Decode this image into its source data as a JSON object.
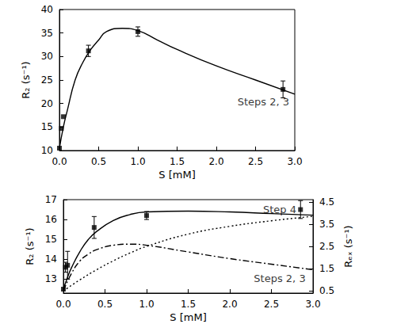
{
  "chart_data": [
    {
      "type": "line",
      "xlabel": "S [mM]",
      "ylabel": "R₂ (s⁻¹)",
      "xlim": [
        0,
        3.0
      ],
      "xticks": [
        {
          "value": 0,
          "label": "0.0"
        },
        {
          "value": 0.5,
          "label": "0.5"
        },
        {
          "value": 1,
          "label": "1.0"
        },
        {
          "value": 1.5,
          "label": "1.5"
        },
        {
          "value": 2,
          "label": "2.0"
        },
        {
          "value": 2.5,
          "label": "2.5"
        },
        {
          "value": 3,
          "label": "3.0"
        }
      ],
      "ylim": [
        10,
        40
      ],
      "yticks": [
        10,
        15,
        20,
        25,
        30,
        35,
        40
      ],
      "grid": false,
      "series": [
        {
          "type": "line",
          "color": "#000000",
          "line_style": "solid",
          "x": [
            0,
            0.05,
            0.1,
            0.2,
            0.3,
            0.4,
            0.5,
            0.6,
            0.8,
            1.0,
            1.25,
            1.5,
            2.0,
            2.5,
            3.0
          ],
          "values": [
            10.5,
            15.0,
            18.5,
            25.0,
            28.8,
            31.5,
            33.5,
            35.3,
            36.0,
            35.5,
            33.5,
            31.5,
            28.0,
            25.0,
            22.0
          ]
        },
        {
          "type": "scatter",
          "color": "#000000",
          "marker": "square",
          "x": [
            0,
            0.025,
            0.05,
            0.37,
            1.0,
            2.85
          ],
          "values": [
            10.5,
            14.7,
            17.2,
            31.2,
            35.3,
            23.0
          ],
          "errors": [
            0,
            0,
            0,
            1.2,
            1.0,
            1.8
          ]
        }
      ],
      "annotations": [
        {
          "text": "Steps 2, 3",
          "x": 2.6,
          "y": 20.3
        }
      ]
    },
    {
      "type": "line",
      "xlabel": "S [mM]",
      "ylabel": "R₂ (s⁻¹)",
      "y2label": "Rₑₓ (s⁻¹)",
      "xlim": [
        0,
        3.0
      ],
      "xticks": [
        {
          "value": 0,
          "label": "0.0"
        },
        {
          "value": 0.5,
          "label": "0.5"
        },
        {
          "value": 1,
          "label": "1.0"
        },
        {
          "value": 1.5,
          "label": "1.5"
        },
        {
          "value": 2,
          "label": "2.0"
        },
        {
          "value": 2.5,
          "label": "2.5"
        },
        {
          "value": 3,
          "label": "3.0"
        }
      ],
      "ylim": [
        12.3,
        17.0
      ],
      "yticks": [
        13,
        14,
        15,
        16,
        17
      ],
      "y2lim": [
        0.4,
        4.6
      ],
      "y2ticks": [
        0.5,
        1.5,
        2.5,
        3.5,
        4.5
      ],
      "grid": false,
      "series": [
        {
          "type": "line",
          "color": "#000000",
          "line_style": "solid",
          "x": [
            0,
            0.05,
            0.1,
            0.2,
            0.3,
            0.4,
            0.6,
            0.8,
            1.0,
            1.5,
            2.0,
            2.5,
            3.0
          ],
          "values": [
            12.5,
            13.1,
            13.6,
            14.4,
            15.0,
            15.4,
            15.95,
            16.25,
            16.38,
            16.42,
            16.38,
            16.3,
            16.22
          ]
        },
        {
          "type": "scatter",
          "color": "#000000",
          "marker": "square",
          "x": [
            0,
            0.025,
            0.05,
            0.37,
            1.0,
            2.85
          ],
          "values": [
            12.5,
            13.6,
            13.7,
            15.6,
            16.2,
            16.5
          ],
          "errors": [
            0,
            0.25,
            0.7,
            0.55,
            0.2,
            0.45
          ]
        },
        {
          "type": "line",
          "axis": "y2",
          "color": "#000000",
          "line_style": "dotted",
          "x": [
            0,
            0.2,
            0.4,
            0.6,
            0.8,
            1.0,
            1.5,
            2.0,
            2.5,
            3.0
          ],
          "values": [
            0.5,
            1.0,
            1.45,
            1.85,
            2.2,
            2.5,
            3.05,
            3.4,
            3.65,
            3.85
          ]
        },
        {
          "type": "line",
          "axis": "y2",
          "color": "#000000",
          "line_style": "dashdot",
          "x": [
            0,
            0.1,
            0.2,
            0.3,
            0.4,
            0.6,
            0.8,
            1.0,
            1.5,
            2.0,
            2.5,
            3.0
          ],
          "values": [
            0.5,
            1.3,
            1.85,
            2.15,
            2.35,
            2.55,
            2.6,
            2.55,
            2.25,
            1.95,
            1.7,
            1.45
          ]
        }
      ],
      "annotations": [
        {
          "text": "Step 4",
          "x": 2.6,
          "y": 4.15,
          "axis": "y2"
        },
        {
          "text": "Steps 2, 3",
          "x": 2.6,
          "y": 1.05,
          "axis": "y2"
        }
      ]
    }
  ]
}
